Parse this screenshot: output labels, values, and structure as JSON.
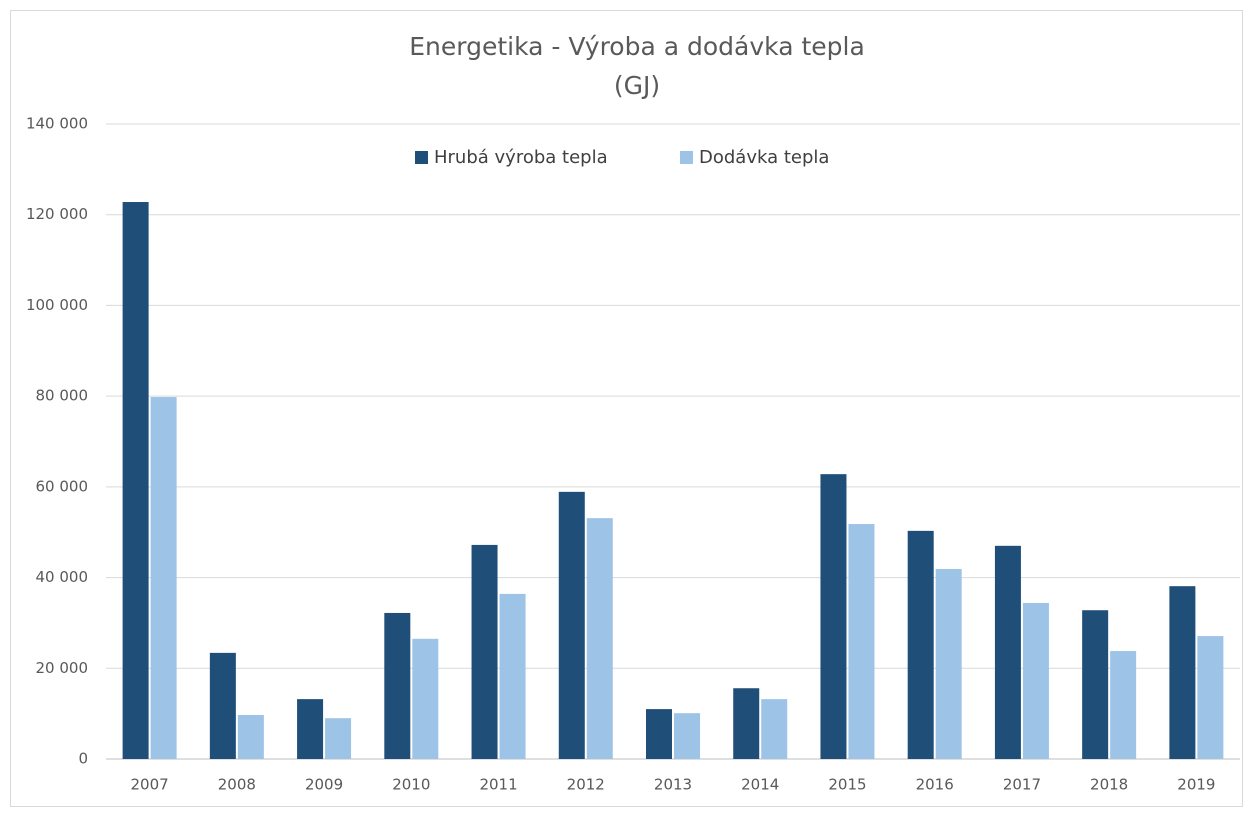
{
  "chart_data": {
    "type": "bar",
    "title": "Energetika - Výroba a dodávka tepla",
    "subtitle": "(GJ)",
    "categories": [
      "2007",
      "2008",
      "2009",
      "2010",
      "2011",
      "2012",
      "2013",
      "2014",
      "2015",
      "2016",
      "2017",
      "2018",
      "2019"
    ],
    "series": [
      {
        "name": "Hrubá výroba tepla",
        "color": "#1f4e79",
        "values": [
          122800,
          23400,
          13200,
          32200,
          47200,
          58900,
          11000,
          15600,
          62800,
          50300,
          47000,
          32800,
          38100
        ]
      },
      {
        "name": "Dodávka tepla",
        "color": "#9dc3e6",
        "values": [
          79800,
          9700,
          9000,
          26500,
          36400,
          53100,
          10100,
          13200,
          51800,
          41900,
          34400,
          23800,
          27100
        ]
      }
    ],
    "ylim": [
      0,
      140000
    ],
    "yticks": [
      0,
      {
        "value": 20000,
        "label": "20 000"
      },
      {
        "value": 40000,
        "label": "40 000"
      },
      {
        "value": 60000,
        "label": "60 000"
      },
      {
        "value": 80000,
        "label": "80 000"
      },
      {
        "value": 100000,
        "label": "100 000"
      },
      {
        "value": 120000,
        "label": "120 000"
      },
      {
        "value": 140000,
        "label": "140 000"
      }
    ],
    "grid": true,
    "legend": "top"
  }
}
